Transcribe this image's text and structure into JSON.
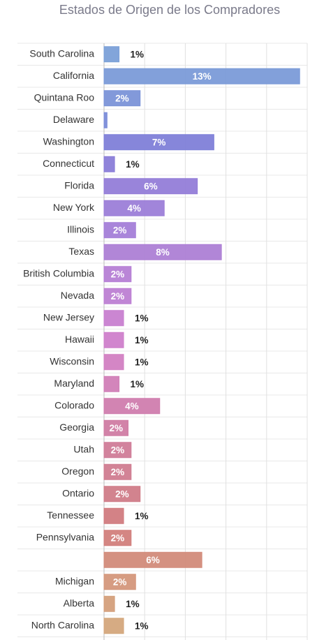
{
  "chart_data": {
    "type": "hbar",
    "title": "Estados de Origen de los Compradores",
    "categories": [
      "South Carolina",
      "California",
      "Quintana Roo",
      "Delaware",
      "Washington",
      "Connecticut",
      "Florida",
      "New York",
      "Illinois",
      "Texas",
      "British Columbia",
      "Nevada",
      "New Jersey",
      "Hawaii",
      "Wisconsin",
      "Maryland",
      "Colorado",
      "Georgia",
      "Utah",
      "Oregon",
      "Ontario",
      "Tennessee",
      "Pennsylvania",
      null,
      "Michigan",
      "Alberta",
      "North Carolina"
    ],
    "values": [
      1.0,
      13.0,
      2.4,
      0.2,
      7.3,
      0.7,
      6.2,
      4.0,
      2.1,
      7.8,
      1.8,
      1.8,
      1.3,
      1.3,
      1.3,
      1.0,
      3.7,
      1.6,
      1.8,
      1.8,
      2.4,
      1.3,
      1.8,
      6.5,
      2.1,
      0.7,
      1.3
    ],
    "value_labels": [
      "1%",
      "13%",
      "2%",
      null,
      "7%",
      "1%",
      "6%",
      "4%",
      "2%",
      "8%",
      "2%",
      "2%",
      "1%",
      "1%",
      "1%",
      "1%",
      "4%",
      "2%",
      "2%",
      "2%",
      "2%",
      "1%",
      "2%",
      "6%",
      "2%",
      "1%",
      "1%"
    ],
    "colors": [
      "#7ba0d8",
      "#7b9bd8",
      "#7b93d8",
      "#7b8cd8",
      "#7f80d8",
      "#8a7dd8",
      "#937dd8",
      "#9c7ed8",
      "#a47ed8",
      "#ad7fd5",
      "#b67fd5",
      "#bd7fd3",
      "#c880d0",
      "#cf80cb",
      "#d280c2",
      "#d17eb7",
      "#d07dae",
      "#d07ca3",
      "#d07c98",
      "#d07c90",
      "#d07c88",
      "#d17b7f",
      "#d27f7c",
      "#d28b7a",
      "#d4977b",
      "#d49f7b",
      "#d4a77c"
    ],
    "xlim": [
      0,
      13.5
    ],
    "xticks": [
      0,
      2.7,
      5.4,
      8.1,
      10.8,
      13.5
    ],
    "grid": true
  }
}
